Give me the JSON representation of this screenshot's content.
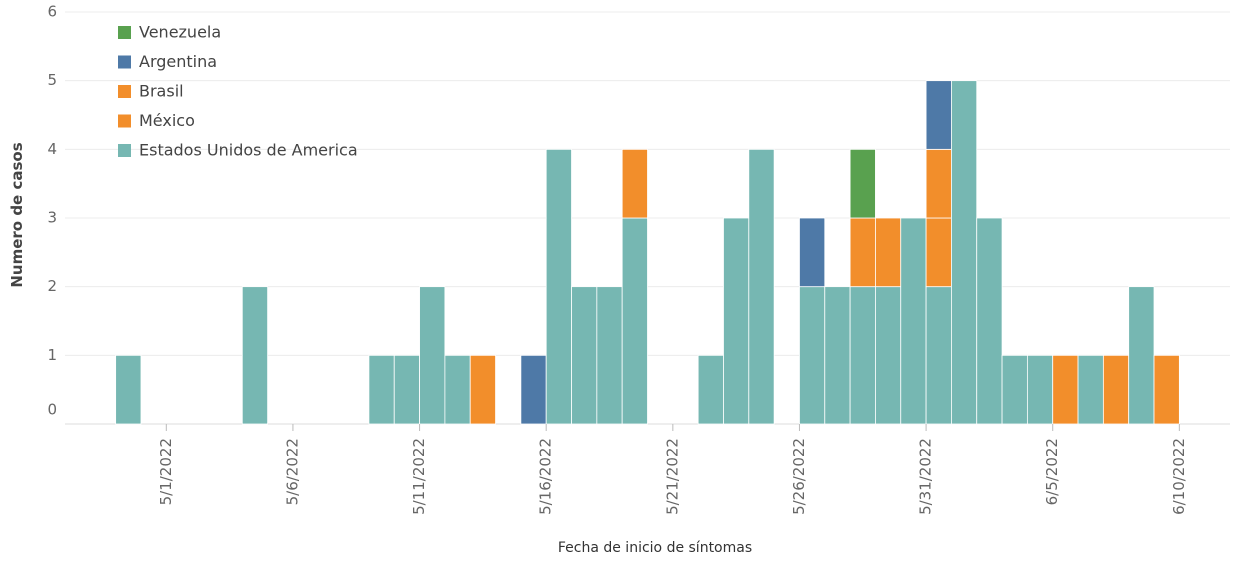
{
  "chart_data": {
    "type": "stacked-bar",
    "x_label": "Fecha de inicio de síntomas",
    "y_label": "Numero de casos",
    "x": [
      "2022-04-29",
      "2022-05-04",
      "2022-05-09",
      "2022-05-10",
      "2022-05-11",
      "2022-05-12",
      "2022-05-13",
      "2022-05-15",
      "2022-05-16",
      "2022-05-17",
      "2022-05-18",
      "2022-05-19",
      "2022-05-22",
      "2022-05-23",
      "2022-05-24",
      "2022-05-26",
      "2022-05-27",
      "2022-05-28",
      "2022-05-29",
      "2022-05-30",
      "2022-05-31",
      "2022-06-01",
      "2022-06-02",
      "2022-06-03",
      "2022-06-04",
      "2022-06-05",
      "2022-06-06",
      "2022-06-07",
      "2022-06-08",
      "2022-06-09"
    ],
    "series": [
      {
        "name": "Venezuela",
        "color": "#59a14f",
        "values": [
          null,
          null,
          null,
          null,
          null,
          null,
          null,
          null,
          null,
          null,
          null,
          null,
          null,
          null,
          null,
          null,
          null,
          1,
          null,
          null,
          null,
          null,
          null,
          null,
          null,
          null,
          null,
          null,
          null,
          null
        ]
      },
      {
        "name": "Argentina",
        "color": "#4e79a7",
        "values": [
          null,
          null,
          null,
          null,
          null,
          null,
          null,
          1,
          null,
          null,
          null,
          null,
          null,
          null,
          null,
          1,
          null,
          null,
          null,
          null,
          1,
          null,
          null,
          null,
          null,
          null,
          null,
          null,
          null,
          null
        ]
      },
      {
        "name": "Brasil",
        "color": "#f28e2b",
        "values": [
          null,
          null,
          null,
          null,
          null,
          null,
          null,
          null,
          null,
          null,
          null,
          null,
          null,
          null,
          null,
          null,
          null,
          null,
          null,
          null,
          1,
          null,
          null,
          null,
          null,
          null,
          null,
          null,
          null,
          null
        ]
      },
      {
        "name": "México",
        "color": "#f28e2b",
        "values": [
          null,
          null,
          null,
          null,
          null,
          null,
          1,
          null,
          null,
          null,
          null,
          1,
          null,
          null,
          null,
          null,
          null,
          1,
          1,
          null,
          1,
          null,
          null,
          null,
          null,
          1,
          null,
          1,
          null,
          1
        ]
      },
      {
        "name": "Estados Unidos de America",
        "color": "#76b7b2",
        "values": [
          1,
          2,
          1,
          1,
          2,
          1,
          null,
          null,
          4,
          2,
          2,
          3,
          1,
          3,
          4,
          2,
          2,
          2,
          2,
          3,
          2,
          5,
          3,
          1,
          1,
          null,
          1,
          null,
          2,
          null
        ]
      }
    ],
    "xlim": [
      "2022-04-27",
      "2022-06-12"
    ],
    "xticks": [
      {
        "value": "2022-05-01",
        "label": "5/1/2022"
      },
      {
        "value": "2022-05-06",
        "label": "5/6/2022"
      },
      {
        "value": "2022-05-11",
        "label": "5/11/2022"
      },
      {
        "value": "2022-05-16",
        "label": "5/16/2022"
      },
      {
        "value": "2022-05-21",
        "label": "5/21/2022"
      },
      {
        "value": "2022-05-26",
        "label": "5/26/2022"
      },
      {
        "value": "2022-05-31",
        "label": "5/31/2022"
      },
      {
        "value": "2022-06-05",
        "label": "6/5/2022"
      },
      {
        "value": "2022-06-10",
        "label": "6/10/2022"
      }
    ],
    "ylim": [
      0,
      6
    ],
    "yticks": [
      0,
      1,
      2,
      3,
      4,
      5,
      6
    ],
    "grid": true,
    "legend": "top-left"
  }
}
